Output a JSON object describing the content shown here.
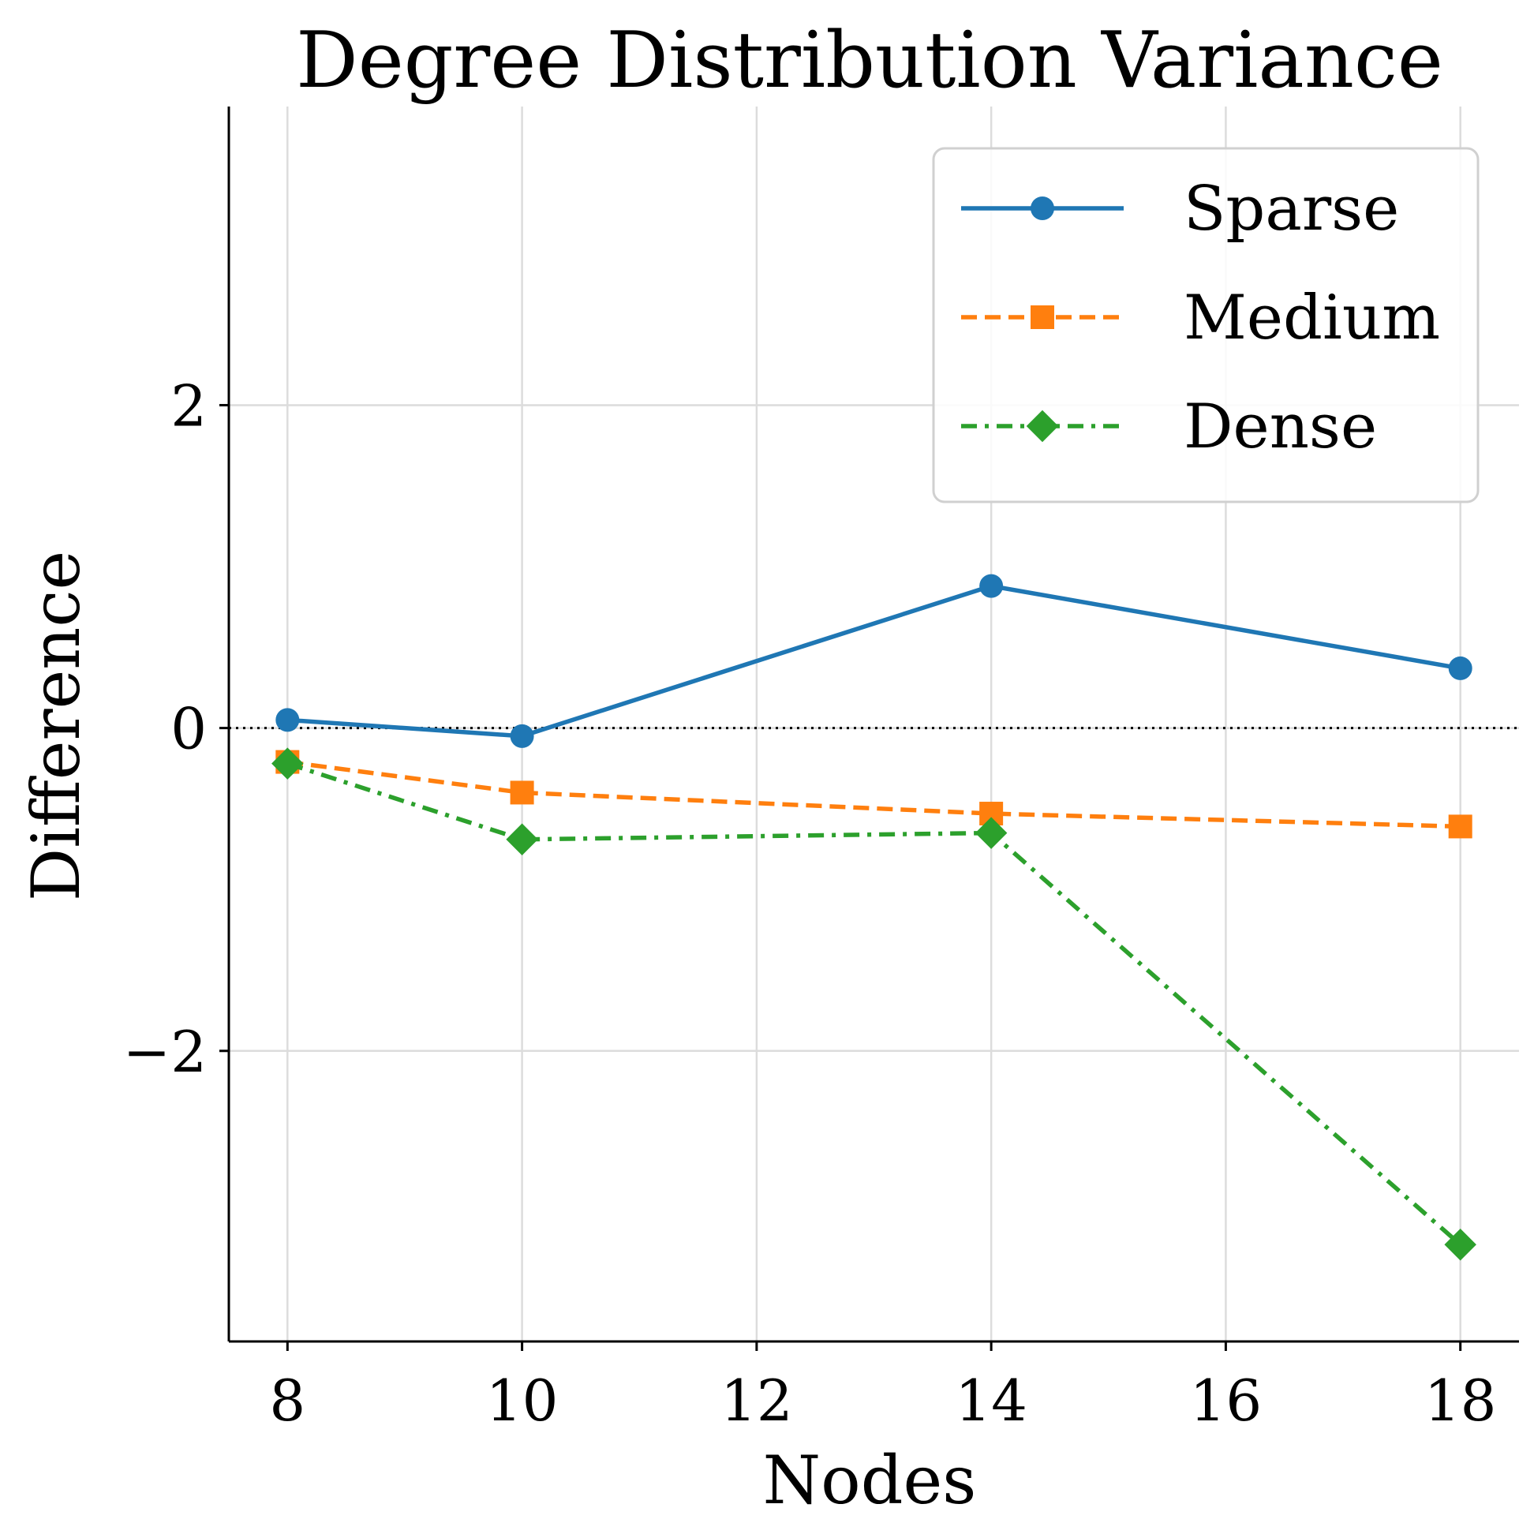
{
  "chart_data": {
    "type": "line",
    "title": "Degree Distribution Variance",
    "xlabel": "Nodes",
    "ylabel": "Difference",
    "x": [
      8,
      10,
      14,
      18
    ],
    "xlim": [
      7.5,
      18.5
    ],
    "ylim": [
      -3.8,
      3.85
    ],
    "xticks": [
      8,
      10,
      12,
      14,
      16,
      18
    ],
    "xtick_labels": [
      "8",
      "10",
      "12",
      "14",
      "16",
      "18"
    ],
    "yticks": [
      -2,
      0,
      2
    ],
    "ytick_labels": [
      "−2",
      "0",
      "2"
    ],
    "grid": true,
    "zero_line": "dotted",
    "legend_position": "upper right",
    "series": [
      {
        "name": "Sparse",
        "values": [
          0.05,
          -0.05,
          0.88,
          0.37
        ],
        "color": "#1f77b4",
        "linestyle": "solid",
        "marker": "circle"
      },
      {
        "name": "Medium",
        "values": [
          -0.21,
          -0.4,
          -0.53,
          -0.61
        ],
        "color": "#ff7f0e",
        "linestyle": "dashed",
        "marker": "square"
      },
      {
        "name": "Dense",
        "values": [
          -0.22,
          -0.69,
          -0.65,
          -3.2
        ],
        "color": "#2ca02c",
        "linestyle": "dashdot",
        "marker": "diamond"
      }
    ]
  }
}
